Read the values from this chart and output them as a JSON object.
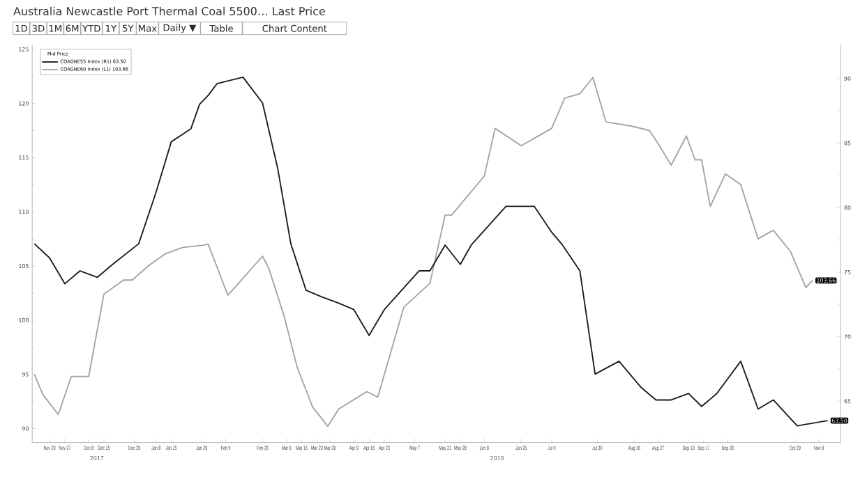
{
  "chart_data": {
    "type": "line",
    "title": "Australia Newcastle Port Thermal Coal 5500…  Last Price",
    "legend_title": "Mid Price",
    "legend": "top left",
    "marker": "none",
    "line_style": "solid",
    "grid": false,
    "annotations": [
      "1D",
      "3D",
      "1M",
      "6M",
      "YTD",
      "1Y",
      "5Y",
      "Max",
      "Daily ▼",
      "Table",
      "Chart Content",
      "2017",
      "2018"
    ],
    "xlim": [
      "2017-11-12",
      "2018-11-19"
    ],
    "xticks": [
      {
        "value": "2017-11-20",
        "label": "Nov 20"
      },
      {
        "value": "2017-11-27",
        "label": "Nov 27"
      },
      {
        "value": "2017-12-08",
        "label": "Dec 8"
      },
      {
        "value": "2017-12-15",
        "label": "Dec 15"
      },
      {
        "value": "2017-12-29",
        "label": "Dec 29"
      },
      {
        "value": "2018-01-08",
        "label": "Jan 8"
      },
      {
        "value": "2018-01-15",
        "label": "Jan 15"
      },
      {
        "value": "2018-01-29",
        "label": "Jan 29"
      },
      {
        "value": "2018-02-09",
        "label": "Feb 9"
      },
      {
        "value": "2018-02-26",
        "label": "Feb 26"
      },
      {
        "value": "2018-03-09",
        "label": "Mar 9"
      },
      {
        "value": "2018-03-16",
        "label": "Mar 16"
      },
      {
        "value": "2018-03-23",
        "label": "Mar 23"
      },
      {
        "value": "2018-03-29",
        "label": "Mar 29"
      },
      {
        "value": "2018-04-09",
        "label": "Apr 9"
      },
      {
        "value": "2018-04-16",
        "label": "Apr 16"
      },
      {
        "value": "2018-04-23",
        "label": "Apr 23"
      },
      {
        "value": "2018-05-07",
        "label": "May 7"
      },
      {
        "value": "2018-05-21",
        "label": "May 21"
      },
      {
        "value": "2018-05-28",
        "label": "May 28"
      },
      {
        "value": "2018-06-08",
        "label": "Jun 8"
      },
      {
        "value": "2018-06-25",
        "label": "Jun 25"
      },
      {
        "value": "2018-07-09",
        "label": "Jul 9"
      },
      {
        "value": "2018-07-30",
        "label": "Jul 30"
      },
      {
        "value": "2018-08-16",
        "label": "Aug 16"
      },
      {
        "value": "2018-08-27",
        "label": "Aug 27"
      },
      {
        "value": "2018-09-10",
        "label": "Sep 10"
      },
      {
        "value": "2018-09-17",
        "label": "Sep 17"
      },
      {
        "value": "2018-09-28",
        "label": "Sep 28"
      },
      {
        "value": "2018-10-29",
        "label": "Oct 29"
      },
      {
        "value": "2018-11-09",
        "label": "Nov 9"
      }
    ],
    "ylim": [
      88.7,
      125.4
    ],
    "yticks": [
      90,
      95,
      100,
      105,
      110,
      115,
      120,
      125
    ],
    "y2lim": [
      61.8,
      92.6
    ],
    "y2ticks": [
      65,
      70,
      75,
      80,
      85,
      90
    ],
    "series": [
      {
        "name": "COAGNE55 Index  (R1)   63.50",
        "color": "#1a1a1a",
        "axis": "y2",
        "x": [
          "2017-11-13",
          "2017-11-20",
          "2017-11-27",
          "2017-12-04",
          "2017-12-12",
          "2017-12-19",
          "2017-12-31",
          "2018-01-08",
          "2018-01-15",
          "2018-01-24",
          "2018-01-28",
          "2018-02-01",
          "2018-02-05",
          "2018-02-17",
          "2018-02-26",
          "2018-03-05",
          "2018-03-11",
          "2018-03-18",
          "2018-03-25",
          "2018-04-02",
          "2018-04-09",
          "2018-04-16",
          "2018-04-23",
          "2018-05-09",
          "2018-05-14",
          "2018-05-21",
          "2018-05-28",
          "2018-06-02",
          "2018-06-18",
          "2018-07-01",
          "2018-07-09",
          "2018-07-14",
          "2018-07-22",
          "2018-07-29",
          "2018-08-09",
          "2018-08-19",
          "2018-08-26",
          "2018-09-02",
          "2018-09-10",
          "2018-09-16",
          "2018-09-23",
          "2018-10-04",
          "2018-10-12",
          "2018-10-19",
          "2018-10-30",
          "2018-11-13"
        ],
        "values": [
          77.2,
          76.1,
          74.1,
          75.1,
          74.6,
          75.6,
          77.2,
          81.2,
          85.1,
          86.1,
          88.0,
          88.7,
          89.6,
          90.1,
          88.1,
          83.0,
          77.2,
          73.6,
          73.1,
          72.6,
          72.1,
          70.1,
          72.1,
          75.1,
          75.1,
          77.1,
          75.6,
          77.1,
          80.1,
          80.1,
          78.1,
          77.1,
          75.1,
          67.1,
          68.1,
          66.1,
          65.1,
          65.1,
          65.6,
          64.6,
          65.6,
          68.1,
          64.4,
          65.1,
          63.1,
          63.5
        ],
        "value_labels": [
          null,
          null,
          null,
          null,
          null,
          null,
          null,
          null,
          null,
          null,
          null,
          null,
          null,
          null,
          null,
          null,
          null,
          null,
          null,
          null,
          null,
          null,
          null,
          null,
          null,
          null,
          null,
          null,
          null,
          null,
          null,
          null,
          null,
          null,
          null,
          null,
          null,
          null,
          null,
          null,
          null,
          null,
          null,
          null,
          null,
          "63.50"
        ]
      },
      {
        "name": "COAGNE60 Index  (L1)  103.66",
        "color": "#a3a3a3",
        "x": [
          "2017-11-13",
          "2017-11-17",
          "2017-11-24",
          "2017-11-30",
          "2017-12-08",
          "2017-12-15",
          "2017-12-24",
          "2017-12-28",
          "2018-01-05",
          "2018-01-12",
          "2018-01-20",
          "2018-01-29",
          "2018-02-01",
          "2018-02-10",
          "2018-02-26",
          "2018-03-01",
          "2018-03-08",
          "2018-03-14",
          "2018-03-21",
          "2018-03-28",
          "2018-04-02",
          "2018-04-15",
          "2018-04-20",
          "2018-05-02",
          "2018-05-14",
          "2018-05-21",
          "2018-05-24",
          "2018-06-08",
          "2018-06-13",
          "2018-06-25",
          "2018-07-09",
          "2018-07-15",
          "2018-07-22",
          "2018-07-28",
          "2018-08-03",
          "2018-08-15",
          "2018-08-23",
          "2018-08-27",
          "2018-09-02",
          "2018-09-09",
          "2018-09-13",
          "2018-09-16",
          "2018-09-20",
          "2018-09-27",
          "2018-10-04",
          "2018-10-12",
          "2018-10-19",
          "2018-10-27",
          "2018-11-03",
          "2018-11-06"
        ],
        "values": [
          95.0,
          93.1,
          91.3,
          94.8,
          94.8,
          102.4,
          103.7,
          103.7,
          105.1,
          106.1,
          106.7,
          106.9,
          107.0,
          102.3,
          105.9,
          104.7,
          100.3,
          95.6,
          92.0,
          90.2,
          91.8,
          93.4,
          92.9,
          101.2,
          103.4,
          109.7,
          109.7,
          113.3,
          117.7,
          116.1,
          117.7,
          120.5,
          120.9,
          122.4,
          118.3,
          117.9,
          117.5,
          116.3,
          114.3,
          117.0,
          114.8,
          114.8,
          110.5,
          113.5,
          112.5,
          107.5,
          108.3,
          106.3,
          103.0,
          103.66
        ],
        "value_labels": [
          null,
          null,
          null,
          null,
          null,
          null,
          null,
          null,
          null,
          null,
          null,
          null,
          null,
          null,
          null,
          null,
          null,
          null,
          null,
          null,
          null,
          null,
          null,
          null,
          null,
          null,
          null,
          null,
          null,
          null,
          null,
          null,
          null,
          null,
          null,
          null,
          null,
          null,
          null,
          null,
          null,
          null,
          null,
          null,
          null,
          null,
          null,
          null,
          null,
          "103.66"
        ]
      }
    ]
  }
}
